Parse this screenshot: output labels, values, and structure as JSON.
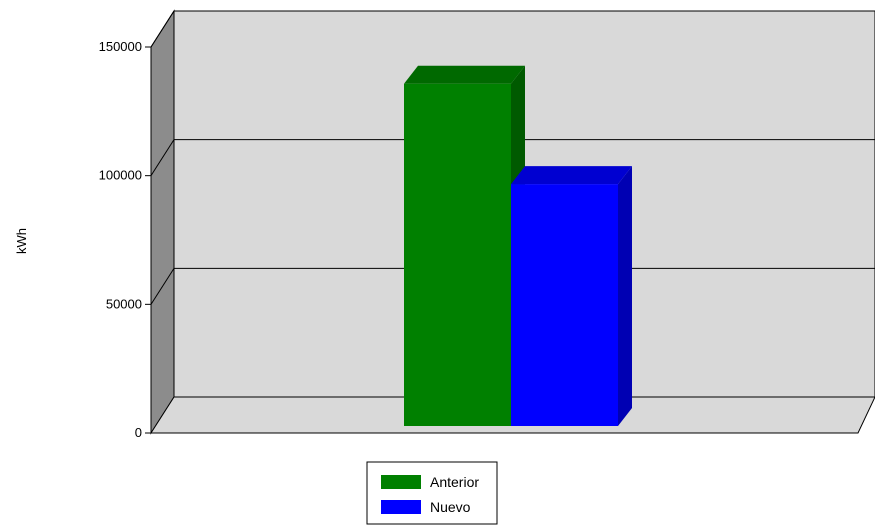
{
  "chart_data": {
    "type": "bar",
    "categories": [
      ""
    ],
    "series": [
      {
        "name": "Anterior",
        "values": [
          133000
        ],
        "color": "#008000"
      },
      {
        "name": "Nuevo",
        "values": [
          94000
        ],
        "color": "#0000ff"
      }
    ],
    "xlabel": "",
    "ylabel": "kWh",
    "ylim": [
      0,
      150000
    ],
    "yticks": [
      0,
      50000,
      100000,
      150000
    ],
    "ytick_labels": [
      "0",
      "50000",
      "100000",
      "150000"
    ],
    "grid": true,
    "legend": "bottom-center",
    "three_d": true,
    "colors": {
      "plot_back_wall": "#d9d9d9",
      "plot_side_wall": "#8c8c8c",
      "plot_floor": "#d9d9d9",
      "grid_line": "#000000"
    }
  }
}
